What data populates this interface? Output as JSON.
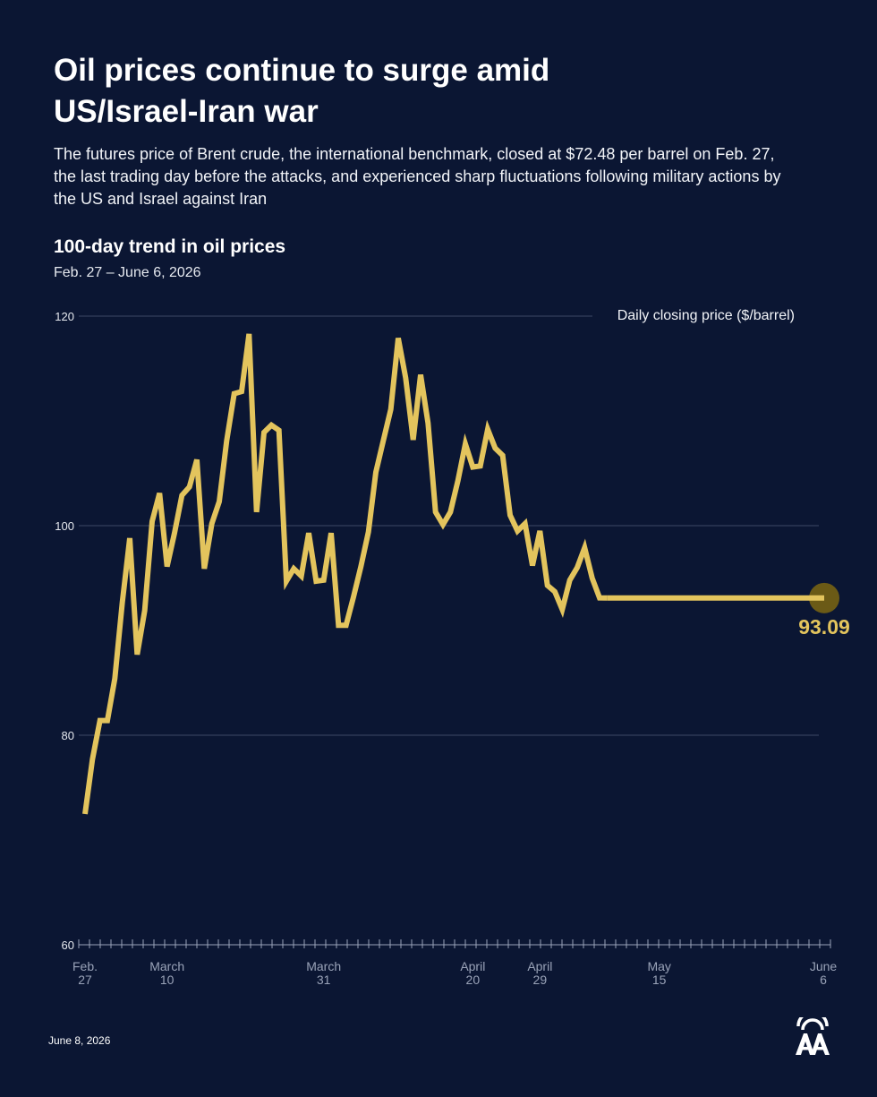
{
  "header": {
    "title": "Oil prices continue to surge amid US/Israel-Iran war",
    "subtitle": "The futures price of Brent crude, the international benchmark, closed at $72.48 per barrel on Feb. 27, the last trading day before the attacks, and experienced sharp fluctuations following military actions by the US and Israel against Iran",
    "chart_title": "100-day trend in oil prices",
    "chart_range": "Feb. 27 – June 6, 2026"
  },
  "footer": {
    "date": "June 8, 2026",
    "logo_icon": "aa-logo-icon"
  },
  "colors": {
    "background": "#0b1633",
    "line": "#e3c45d",
    "end_marker": "#6b5a16",
    "grid": "#3c4866",
    "axis_text": "#9aa3b8"
  },
  "chart_data": {
    "type": "line",
    "title": "100-day trend in oil prices",
    "subtitle": "Feb. 27 – June 6, 2026",
    "ylabel": "Daily closing price ($/barrel)",
    "ylim": [
      60,
      120
    ],
    "yticks": [
      60,
      80,
      100,
      120
    ],
    "xlim": [
      "2026-02-27",
      "2026-06-06"
    ],
    "x_tick_labels": [
      {
        "date": "2026-02-27",
        "line1": "Feb.",
        "line2": "27"
      },
      {
        "date": "2026-03-10",
        "line1": "March",
        "line2": "10"
      },
      {
        "date": "2026-03-31",
        "line1": "March",
        "line2": "31"
      },
      {
        "date": "2026-04-20",
        "line1": "April",
        "line2": "20"
      },
      {
        "date": "2026-04-29",
        "line1": "April",
        "line2": "29"
      },
      {
        "date": "2026-05-15",
        "line1": "May",
        "line2": "15"
      },
      {
        "date": "2026-06-06",
        "line1": "June",
        "line2": "6"
      }
    ],
    "grid": true,
    "end_label": "93.09",
    "series": [
      {
        "points": [
          [
            "2026-02-27",
            72.48
          ],
          [
            "2026-02-28",
            77.7
          ],
          [
            "2026-03-01",
            81.4
          ],
          [
            "2026-03-02",
            81.4
          ],
          [
            "2026-03-03",
            85.4
          ],
          [
            "2026-03-04",
            92.7
          ],
          [
            "2026-03-05",
            98.8
          ],
          [
            "2026-03-06",
            87.7
          ],
          [
            "2026-03-07",
            91.9
          ],
          [
            "2026-03-08",
            100.4
          ],
          [
            "2026-03-09",
            103.1
          ],
          [
            "2026-03-10",
            96.1
          ],
          [
            "2026-03-11",
            99.3
          ],
          [
            "2026-03-12",
            102.9
          ],
          [
            "2026-03-13",
            103.7
          ],
          [
            "2026-03-14",
            106.3
          ],
          [
            "2026-03-15",
            95.9
          ],
          [
            "2026-03-16",
            100.2
          ],
          [
            "2026-03-17",
            102.3
          ],
          [
            "2026-03-18",
            108.1
          ],
          [
            "2026-03-19",
            112.6
          ],
          [
            "2026-03-20",
            112.8
          ],
          [
            "2026-03-21",
            118.3
          ],
          [
            "2026-03-22",
            101.3
          ],
          [
            "2026-03-23",
            108.9
          ],
          [
            "2026-03-24",
            109.6
          ],
          [
            "2026-03-25",
            109.1
          ],
          [
            "2026-03-26",
            94.7
          ],
          [
            "2026-03-27",
            95.9
          ],
          [
            "2026-03-28",
            95.2
          ],
          [
            "2026-03-29",
            99.3
          ],
          [
            "2026-03-30",
            94.7
          ],
          [
            "2026-03-31",
            94.8
          ],
          [
            "2026-04-01",
            99.3
          ],
          [
            "2026-04-02",
            90.5
          ],
          [
            "2026-04-03",
            90.5
          ],
          [
            "2026-04-04",
            93.2
          ],
          [
            "2026-04-05",
            96.1
          ],
          [
            "2026-04-06",
            99.4
          ],
          [
            "2026-04-07",
            105.1
          ],
          [
            "2026-04-08",
            108.1
          ],
          [
            "2026-04-09",
            111.1
          ],
          [
            "2026-04-10",
            117.9
          ],
          [
            "2026-04-11",
            114.1
          ],
          [
            "2026-04-12",
            108.2
          ],
          [
            "2026-04-13",
            114.4
          ],
          [
            "2026-04-14",
            109.8
          ],
          [
            "2026-04-15",
            101.3
          ],
          [
            "2026-04-16",
            100.1
          ],
          [
            "2026-04-17",
            101.3
          ],
          [
            "2026-04-18",
            104.3
          ],
          [
            "2026-04-19",
            107.8
          ],
          [
            "2026-04-20",
            105.6
          ],
          [
            "2026-04-21",
            105.7
          ],
          [
            "2026-04-22",
            109.2
          ],
          [
            "2026-04-23",
            107.4
          ],
          [
            "2026-04-24",
            106.7
          ],
          [
            "2026-04-25",
            101.0
          ],
          [
            "2026-04-26",
            99.5
          ],
          [
            "2026-04-27",
            100.2
          ],
          [
            "2026-04-28",
            96.2
          ],
          [
            "2026-04-29",
            99.5
          ],
          [
            "2026-04-30",
            94.3
          ],
          [
            "2026-05-01",
            93.7
          ],
          [
            "2026-05-02",
            92.0
          ],
          [
            "2026-05-03",
            94.8
          ],
          [
            "2026-05-04",
            96.0
          ],
          [
            "2026-05-05",
            97.9
          ],
          [
            "2026-05-06",
            95.0
          ],
          [
            "2026-05-07",
            93.1
          ],
          [
            "2026-05-08",
            93.09
          ]
        ]
      }
    ]
  }
}
